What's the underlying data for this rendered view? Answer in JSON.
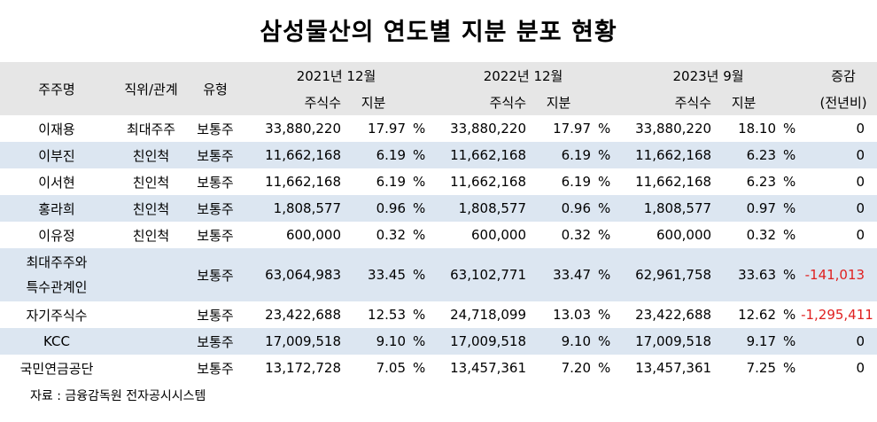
{
  "title": "삼성물산의 연도별 지분 분포 현황",
  "header": {
    "holder": "주주명",
    "position": "직위/관계",
    "type": "유형",
    "y2021": "2021년 12월",
    "y2022": "2022년 12월",
    "y2023": "2023년 9월",
    "shares": "주식수",
    "stake": "지분",
    "change_line1": "증감",
    "change_line2": "(전년비)"
  },
  "pct_sign": "%",
  "rows": [
    {
      "name": "이재용",
      "relation": "최대주주",
      "type": "보통주",
      "s2021": "33,880,220",
      "p2021": "17.97",
      "s2022": "33,880,220",
      "p2022": "17.97",
      "s2023": "33,880,220",
      "p2023": "18.10",
      "change": "0"
    },
    {
      "name": "이부진",
      "relation": "친인척",
      "type": "보통주",
      "s2021": "11,662,168",
      "p2021": "6.19",
      "s2022": "11,662,168",
      "p2022": "6.19",
      "s2023": "11,662,168",
      "p2023": "6.23",
      "change": "0"
    },
    {
      "name": "이서현",
      "relation": "친인척",
      "type": "보통주",
      "s2021": "11,662,168",
      "p2021": "6.19",
      "s2022": "11,662,168",
      "p2022": "6.19",
      "s2023": "11,662,168",
      "p2023": "6.23",
      "change": "0"
    },
    {
      "name": "홍라희",
      "relation": "친인척",
      "type": "보통주",
      "s2021": "1,808,577",
      "p2021": "0.96",
      "s2022": "1,808,577",
      "p2022": "0.96",
      "s2023": "1,808,577",
      "p2023": "0.97",
      "change": "0"
    },
    {
      "name": "이유정",
      "relation": "친인척",
      "type": "보통주",
      "s2021": "600,000",
      "p2021": "0.32",
      "s2022": "600,000",
      "p2022": "0.32",
      "s2023": "600,000",
      "p2023": "0.32",
      "change": "0"
    },
    {
      "name_line1": "최대주주와",
      "name_line2": "특수관계인",
      "relation": "",
      "type": "보통주",
      "s2021": "63,064,983",
      "p2021": "33.45",
      "s2022": "63,102,771",
      "p2022": "33.47",
      "s2023": "62,961,758",
      "p2023": "33.63",
      "change": "-141,013"
    },
    {
      "name": "자기주식수",
      "relation": "",
      "type": "보통주",
      "s2021": "23,422,688",
      "p2021": "12.53",
      "s2022": "24,718,099",
      "p2022": "13.03",
      "s2023": "23,422,688",
      "p2023": "12.62",
      "change": "-1,295,411"
    },
    {
      "name": "KCC",
      "relation": "",
      "type": "보통주",
      "s2021": "17,009,518",
      "p2021": "9.10",
      "s2022": "17,009,518",
      "p2022": "9.10",
      "s2023": "17,009,518",
      "p2023": "9.17",
      "change": "0"
    },
    {
      "name": "국민연금공단",
      "relation": "",
      "type": "보통주",
      "s2021": "13,172,728",
      "p2021": "7.05",
      "s2022": "13,457,361",
      "p2022": "7.20",
      "s2023": "13,457,361",
      "p2023": "7.25",
      "change": "0"
    }
  ],
  "source": "자료 : 금융감독원 전자공시시스템",
  "colors": {
    "header_bg": "#e6e6e6",
    "band_bg": "#dce6f1",
    "negative": "#e02020"
  }
}
